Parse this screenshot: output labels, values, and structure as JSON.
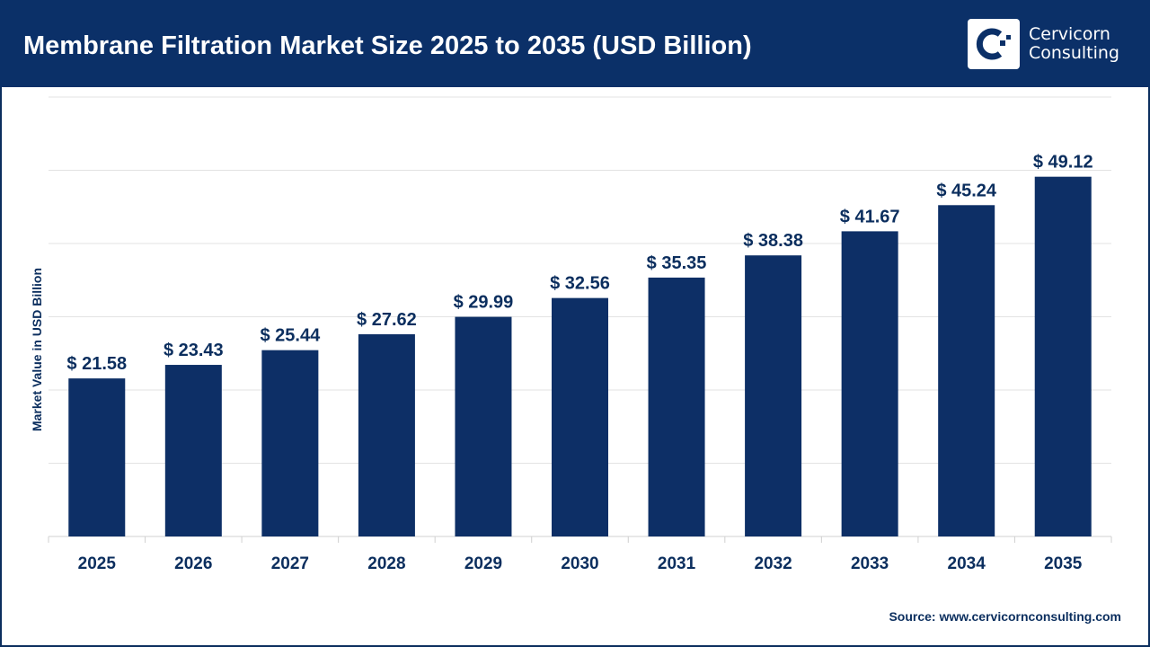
{
  "header": {
    "title": "Membrane Filtration Market Size 2025 to 2035 (USD Billion)"
  },
  "logo": {
    "line1": "Cervicorn",
    "line2": "Consulting"
  },
  "source": "Source: www.cervicornconsulting.com",
  "colors": {
    "header": "#0b3068",
    "bar": "#0d2f66",
    "text": "#0b2e5e"
  },
  "chart_data": {
    "type": "bar",
    "title": "Membrane Filtration Market Size 2025 to 2035 (USD Billion)",
    "xlabel": "",
    "ylabel": "Market Value in USD Billion",
    "ylim": [
      0,
      60
    ],
    "grid": true,
    "categories": [
      "2025",
      "2026",
      "2027",
      "2028",
      "2029",
      "2030",
      "2031",
      "2032",
      "2033",
      "2034",
      "2035"
    ],
    "values": [
      21.58,
      23.43,
      25.44,
      27.62,
      29.99,
      32.56,
      35.35,
      38.38,
      41.67,
      45.24,
      49.12
    ],
    "data_labels": [
      "$ 21.58",
      "$ 23.43",
      "$ 25.44",
      "$ 27.62",
      "$ 29.99",
      "$ 32.56",
      "$ 35.35",
      "$ 38.38",
      "$ 41.67",
      "$ 45.24",
      "$ 49.12"
    ]
  }
}
